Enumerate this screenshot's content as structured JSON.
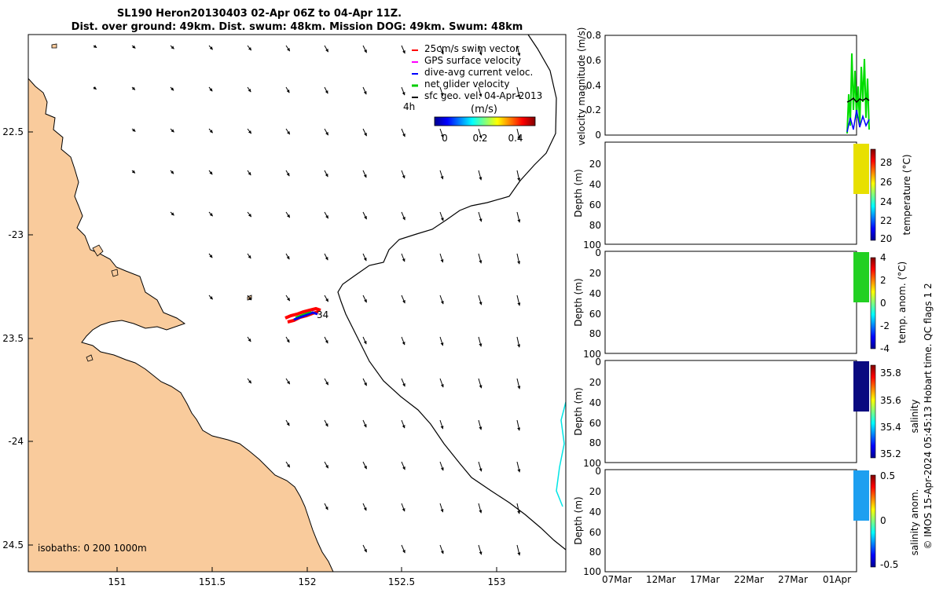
{
  "title": {
    "line1": "SL190 Heron20130403 02-Apr 06Z to 04-Apr 11Z.",
    "line2": "Dist. over ground: 49km. Dist. swum: 48km. Mission DOG: 49km. Swum: 48km"
  },
  "map": {
    "lon_ticks": [
      "151",
      "151.5",
      "152",
      "152.5",
      "153"
    ],
    "lat_ticks": [
      "22.5",
      "-23",
      "23.5",
      "-24",
      "24.5"
    ],
    "isobath_label": "isobaths: 0   200  1000m",
    "time_label": "4h",
    "glider_label": "34",
    "colors": {
      "land": "#f9cb9c",
      "coast": "#000000",
      "isobath": "#000000",
      "track_red": "#ff0000",
      "track_blue": "#0000ee",
      "track_green": "#00cc00",
      "cyan_line": "#00e5e5"
    }
  },
  "legend": {
    "items": [
      {
        "label": "25cm/s swim vector",
        "color": "#ff0000",
        "icon": "arrow-icon"
      },
      {
        "label": "GPS surface velocity",
        "color": "#ff00ff",
        "icon": "arrow-icon"
      },
      {
        "label": "dive-avg current veloc.",
        "color": "#0000ff",
        "icon": "arrow-icon"
      },
      {
        "label": "net glider velocity",
        "color": "#00cc00",
        "icon": "arrow-icon"
      },
      {
        "label": "sfc geo. vel. 04-Apr-2013",
        "color": "#000000",
        "icon": "arrow-icon"
      }
    ],
    "colorbar_title": "(m/s)",
    "colorbar_ticks": [
      "0",
      "0.2",
      "0.4"
    ]
  },
  "panels": [
    {
      "ylabel": "velocity magnitude (m/s)",
      "yticks": [
        "0.8",
        "0.6",
        "0.4",
        "0.2",
        "0"
      ]
    },
    {
      "ylabel": "Depth (m)",
      "yticks": [
        "20",
        "40",
        "60",
        "80",
        "100"
      ],
      "cbar_label": "temperature (°C)",
      "cbar_ticks": [
        "28",
        "26",
        "24",
        "22",
        "20"
      ]
    },
    {
      "ylabel": "Depth (m)",
      "yticks": [
        "0",
        "20",
        "40",
        "60",
        "80",
        "100"
      ],
      "cbar_label": "temp. anom. (°C)",
      "cbar_ticks": [
        "4",
        "2",
        "0",
        "-2",
        "-4"
      ]
    },
    {
      "ylabel": "Depth (m)",
      "yticks": [
        "0",
        "20",
        "40",
        "60",
        "80",
        "100"
      ],
      "cbar_label": "salinity",
      "cbar_ticks": [
        "35.8",
        "35.6",
        "35.4",
        "35.2"
      ]
    },
    {
      "ylabel": "Depth (m)",
      "yticks": [
        "0",
        "20",
        "40",
        "60",
        "80",
        "100"
      ],
      "cbar_label": "salinity anom.",
      "cbar_ticks": [
        "0.5",
        "0",
        "-0.5"
      ]
    }
  ],
  "time_ticks": [
    "07Mar",
    "12Mar",
    "17Mar",
    "22Mar",
    "27Mar",
    "01Apr"
  ],
  "copyright": "© IMOS 15-Apr-2024 05:45:13 Hobart time. QC flags 1  2"
}
